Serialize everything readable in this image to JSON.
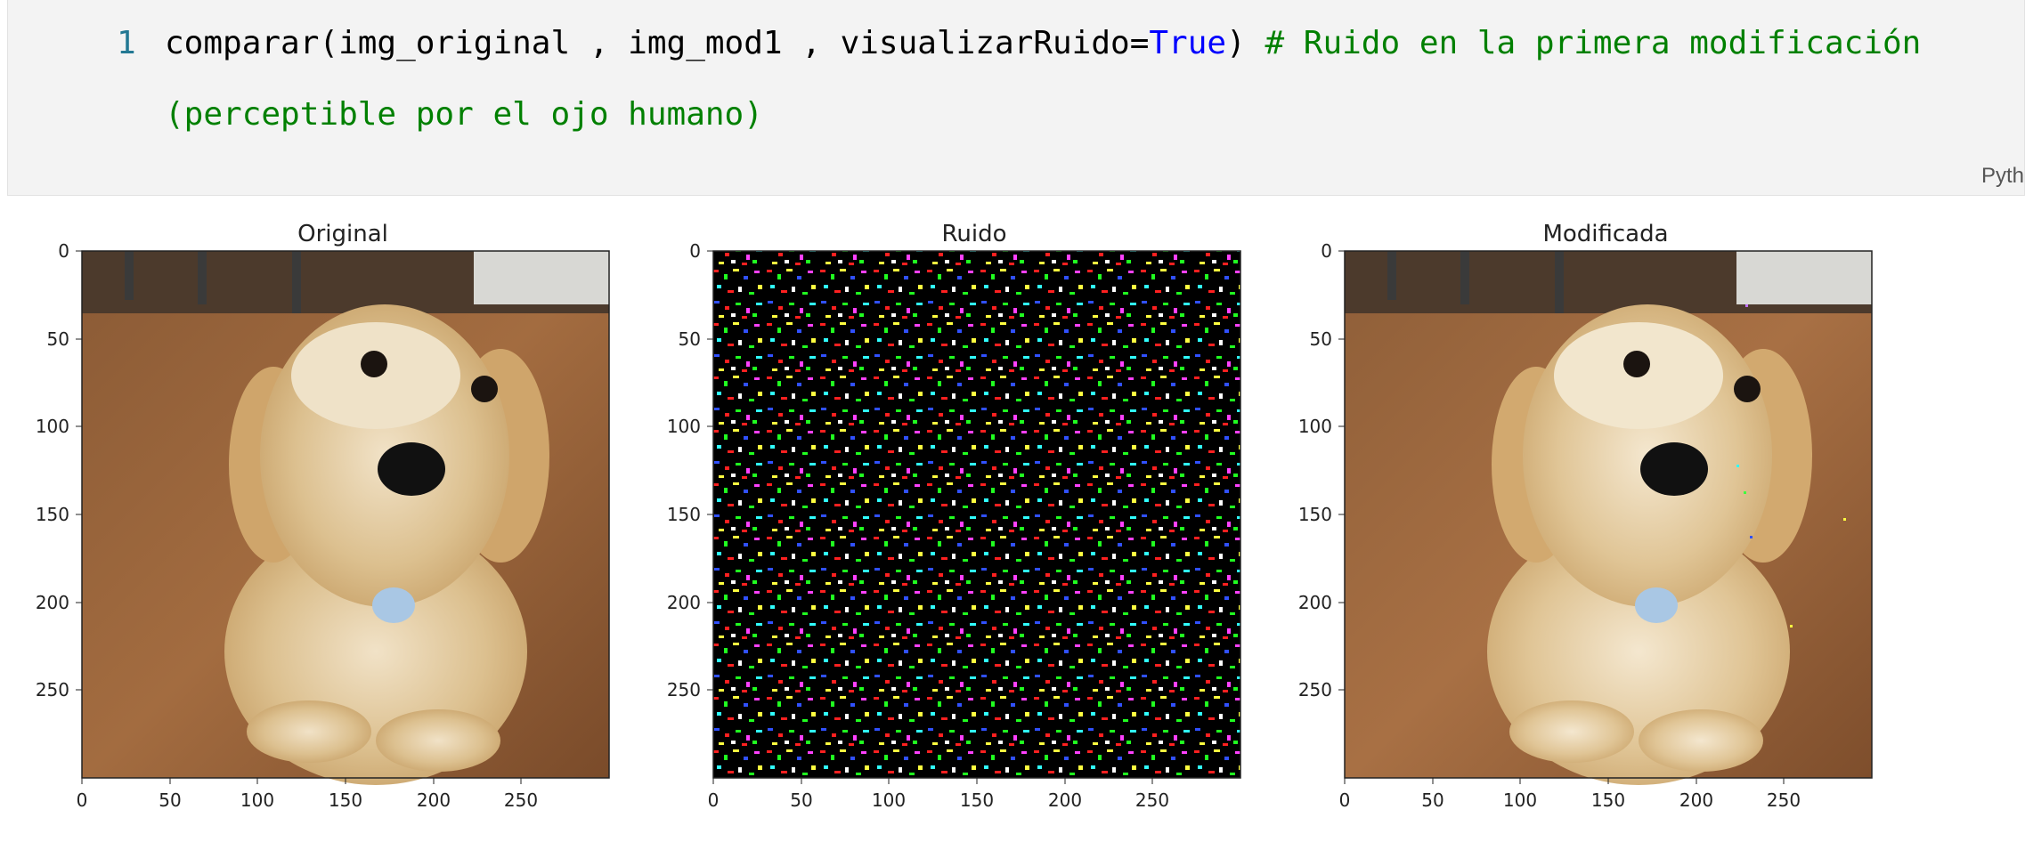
{
  "cell": {
    "line_number": "1",
    "code_prefix": "comparar(img_original , img_mod1 , visualizarRuido=",
    "keyword": "True",
    "code_suffix": ") ",
    "comment_line1": "# Ruido en la primera modificación",
    "comment_line2": "(perceptible por el ojo humano)",
    "language_label": "Pyth"
  },
  "plots": [
    {
      "title": "Original",
      "xticks": [
        "0",
        "50",
        "100",
        "150",
        "200",
        "250"
      ],
      "yticks": [
        "0",
        "50",
        "100",
        "150",
        "200",
        "250"
      ]
    },
    {
      "title": "Ruido",
      "xticks": [
        "0",
        "50",
        "100",
        "150",
        "200",
        "250"
      ],
      "yticks": [
        "0",
        "50",
        "100",
        "150",
        "200",
        "250"
      ]
    },
    {
      "title": "Modificada",
      "xticks": [
        "0",
        "50",
        "100",
        "150",
        "200",
        "250"
      ],
      "yticks": [
        "0",
        "50",
        "100",
        "150",
        "200",
        "250"
      ]
    }
  ],
  "image_extent": 300,
  "colors": {
    "accent_keyword": "#0000ff",
    "comment": "#008000",
    "line_number": "#237893"
  }
}
